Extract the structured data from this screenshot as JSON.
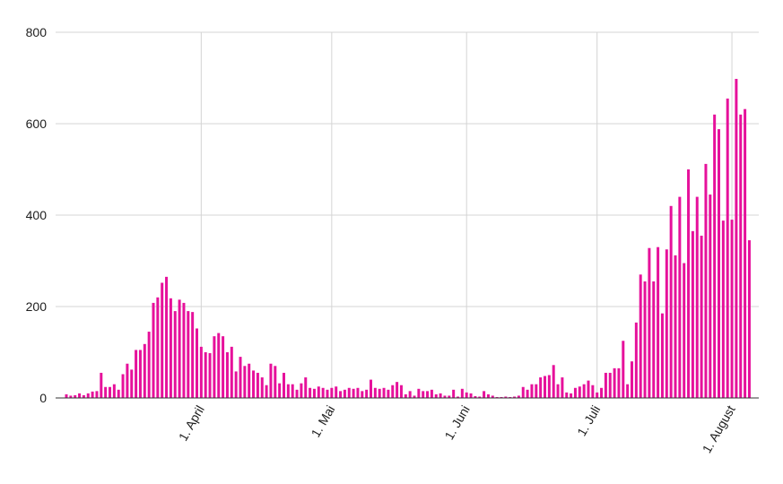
{
  "chart_data": {
    "type": "bar",
    "title": "",
    "xlabel": "",
    "ylabel": "",
    "ylim": [
      0,
      800
    ],
    "y_ticks": [
      "0",
      "200",
      "400",
      "600",
      "800"
    ],
    "x_start_date": "2020-03-01",
    "x_ticks": [
      {
        "label": "1. April",
        "date": "2020-04-01"
      },
      {
        "label": "1. Mai",
        "date": "2020-05-01"
      },
      {
        "label": "1. Juni",
        "date": "2020-06-01"
      },
      {
        "label": "1. Juli",
        "date": "2020-07-01"
      },
      {
        "label": "1. August",
        "date": "2020-08-01"
      }
    ],
    "grid": true,
    "bar_color": "#e6119b",
    "values": [
      8,
      5,
      6,
      10,
      6,
      10,
      14,
      15,
      55,
      24,
      24,
      30,
      18,
      52,
      75,
      62,
      105,
      105,
      118,
      145,
      208,
      220,
      252,
      265,
      218,
      190,
      215,
      208,
      190,
      188,
      152,
      112,
      100,
      98,
      135,
      142,
      135,
      100,
      112,
      58,
      90,
      70,
      75,
      60,
      55,
      45,
      28,
      75,
      70,
      32,
      55,
      30,
      30,
      18,
      32,
      45,
      22,
      20,
      25,
      22,
      18,
      22,
      25,
      15,
      18,
      22,
      20,
      22,
      15,
      18,
      40,
      22,
      20,
      22,
      18,
      28,
      35,
      28,
      8,
      15,
      5,
      20,
      15,
      15,
      18,
      8,
      10,
      5,
      5,
      18,
      3,
      20,
      12,
      10,
      4,
      3,
      15,
      8,
      5,
      2,
      2,
      3,
      2,
      3,
      5,
      24,
      18,
      30,
      30,
      45,
      48,
      50,
      72,
      30,
      45,
      12,
      10,
      22,
      25,
      30,
      38,
      28,
      12,
      22,
      55,
      55,
      65,
      65,
      125,
      30,
      80,
      165,
      270,
      255,
      328,
      255,
      330,
      185,
      325,
      420,
      312,
      440,
      295,
      500,
      365,
      440,
      355,
      512,
      445,
      620,
      588,
      388,
      655,
      390,
      698,
      620,
      632,
      345
    ]
  }
}
